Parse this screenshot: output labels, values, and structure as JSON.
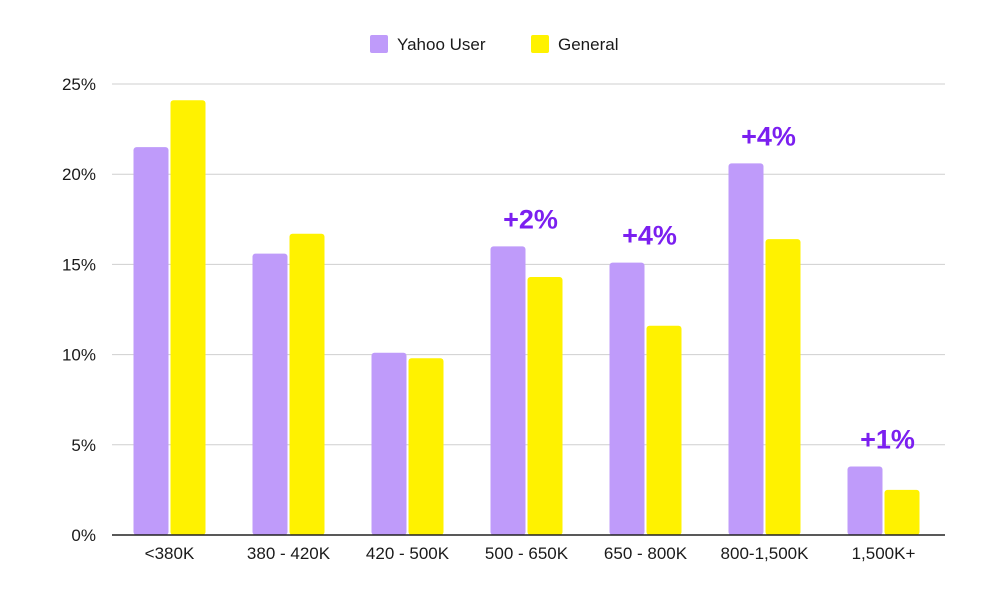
{
  "chart_data": {
    "type": "bar",
    "categories": [
      "<380K",
      "380 - 420K",
      "420 - 500K",
      "500 - 650K",
      "650 - 800K",
      "800-1,500K",
      "1,500K+"
    ],
    "series": [
      {
        "name": "Yahoo User",
        "color": "#bf9bfa",
        "values": [
          21.5,
          15.6,
          10.1,
          16.0,
          15.1,
          20.6,
          3.8
        ]
      },
      {
        "name": "General",
        "color": "#fff200",
        "values": [
          24.1,
          16.7,
          9.8,
          14.3,
          11.6,
          16.4,
          2.5
        ]
      }
    ],
    "ylim": [
      0,
      25
    ],
    "yticks": [
      0,
      5,
      10,
      15,
      20,
      25
    ],
    "ytick_labels": [
      "0%",
      "5%",
      "10%",
      "15%",
      "20%",
      "25%"
    ],
    "grid": true,
    "legend_position": "top-center",
    "annotations": [
      {
        "category": "500 - 650K",
        "text": "+2%"
      },
      {
        "category": "650 - 800K",
        "text": "+4%"
      },
      {
        "category": "800-1,500K",
        "text": "+4%"
      },
      {
        "category": "1,500K+",
        "text": "+1%"
      }
    ],
    "annotation_color": "#7b1ff0",
    "gridline_color": "#cfcfcf",
    "axis_color": "#222222"
  }
}
